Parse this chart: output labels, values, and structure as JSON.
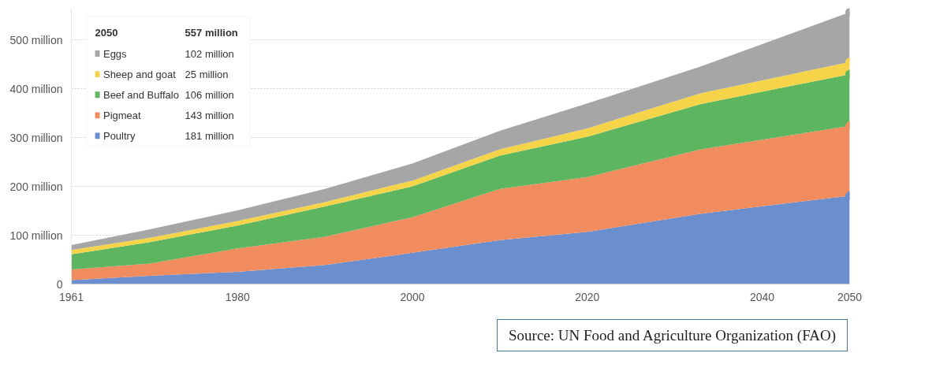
{
  "chart_data": {
    "type": "area",
    "stacked": true,
    "x": [
      1961,
      1970,
      1980,
      1990,
      2000,
      2010,
      2020,
      2033,
      2050
    ],
    "series": [
      {
        "name": "Poultry",
        "color": "#6b8fce",
        "values": [
          8,
          17,
          25,
          39,
          64,
          90,
          107,
          144,
          181
        ]
      },
      {
        "name": "Pigmeat",
        "color": "#f08c5e",
        "values": [
          22,
          25,
          48,
          58,
          73,
          105,
          112,
          132,
          143
        ]
      },
      {
        "name": "Beef and Buffalo",
        "color": "#5db560",
        "values": [
          31,
          44,
          47,
          62,
          63,
          68,
          83,
          93,
          106
        ]
      },
      {
        "name": "Sheep and goat",
        "color": "#f5d44a",
        "values": [
          9,
          9,
          9,
          9,
          12,
          13,
          17,
          22,
          25
        ]
      },
      {
        "name": "Eggs",
        "color": "#a6a6a6",
        "values": [
          10,
          17,
          22,
          27,
          35,
          38,
          51,
          55,
          102
        ]
      }
    ],
    "xlim": [
      1961,
      2050
    ],
    "ylim": [
      0,
      565
    ],
    "xticks": [
      1961,
      1980,
      2000,
      2020,
      2040,
      2050
    ],
    "yticks": [
      0,
      {
        "value": 100,
        "label": "100 million"
      },
      {
        "value": 200,
        "label": "200 million"
      },
      {
        "value": 300,
        "label": "300 million"
      },
      {
        "value": 400,
        "label": "400 million"
      },
      {
        "value": 500,
        "label": "500 million"
      }
    ],
    "grid": "y",
    "legend": "top left",
    "annotations": [
      "2050",
      "557 million",
      "102 million",
      "25 million",
      "106 million",
      "143 million",
      "181 million",
      "Source: UN Food and Agriculture Organization (FAO)"
    ]
  }
}
